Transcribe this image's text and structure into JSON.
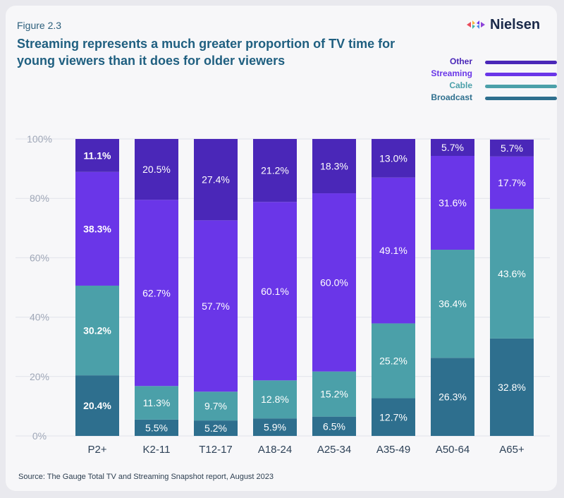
{
  "figure_label": "Figure 2.3",
  "title": "Streaming represents a much greater proportion of TV time for young viewers than it does for older viewers",
  "brand": "Nielsen",
  "source": "Source: The Gauge Total TV and Streaming Snapshot report, August 2023",
  "colors": {
    "Broadcast": "#2e6f8e",
    "Cable": "#4ba0a9",
    "Streaming": "#6a36e8",
    "Other": "#4a27b8",
    "axis_text": "#a0a8b8",
    "category_text": "#2d4157"
  },
  "legend": [
    {
      "name": "Other",
      "color": "#4a27b8"
    },
    {
      "name": "Streaming",
      "color": "#6a36e8"
    },
    {
      "name": "Cable",
      "color": "#4ba0a9"
    },
    {
      "name": "Broadcast",
      "color": "#2e6f8e"
    }
  ],
  "chart_data": {
    "type": "bar",
    "stacked": true,
    "categories": [
      "P2+",
      "K2-11",
      "T12-17",
      "A18-24",
      "A25-34",
      "A35-49",
      "A50-64",
      "A65+"
    ],
    "series": [
      {
        "name": "Broadcast",
        "values": [
          20.4,
          5.5,
          5.2,
          5.9,
          6.5,
          12.7,
          26.3,
          32.8
        ],
        "labels": [
          "20.4%",
          "5.5%",
          "5.2%",
          "5.9%",
          "6.5%",
          "12.7%",
          "26.3%",
          "32.8%"
        ]
      },
      {
        "name": "Cable",
        "values": [
          30.2,
          11.3,
          9.7,
          12.8,
          15.2,
          25.2,
          36.4,
          43.6
        ],
        "labels": [
          "30.2%",
          "11.3%",
          "9.7%",
          "12.8%",
          "15.2%",
          "25.2%",
          "36.4%",
          "43.6%"
        ]
      },
      {
        "name": "Streaming",
        "values": [
          38.3,
          62.7,
          57.7,
          60.1,
          60.0,
          49.1,
          31.6,
          17.7
        ],
        "labels": [
          "38.3%",
          "62.7%",
          "57.7%",
          "60.1%",
          "60.0%",
          "49.1%",
          "31.6%",
          "17.7%"
        ]
      },
      {
        "name": "Other",
        "values": [
          11.1,
          20.5,
          27.4,
          21.2,
          18.3,
          13.0,
          5.7,
          5.7
        ],
        "labels": [
          "11.1%",
          "20.5%",
          "27.4%",
          "21.2%",
          "18.3%",
          "13.0%",
          "5.7%",
          "5.7%"
        ]
      }
    ],
    "yticks": [
      "0%",
      "20%",
      "40%",
      "60%",
      "80%",
      "100%"
    ],
    "ylim": [
      0,
      100
    ],
    "grid": true,
    "legend_position": "top-right"
  }
}
